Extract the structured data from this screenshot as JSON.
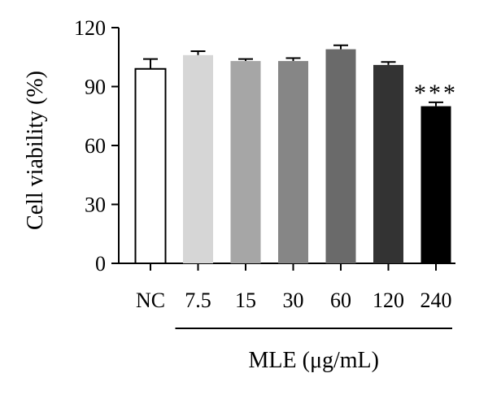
{
  "chart_data": {
    "type": "bar",
    "title": "",
    "xlabel": "",
    "ylabel": "Cell viability (%)",
    "ylim": [
      0,
      120
    ],
    "yticks": [
      0,
      30,
      60,
      90,
      120
    ],
    "grid": false,
    "categories": [
      "NC",
      "7.5",
      "15",
      "30",
      "60",
      "120",
      "240"
    ],
    "values": [
      99,
      106,
      103,
      103,
      109,
      101,
      80
    ],
    "errors": [
      5,
      2,
      1,
      1.5,
      2,
      1.5,
      2
    ],
    "bar_colors": [
      "#ffffff",
      "#d6d6d6",
      "#a6a6a6",
      "#868686",
      "#6a6a6a",
      "#333333",
      "#000000"
    ],
    "group_label": "MLE (μg/mL)",
    "group_categories": [
      "7.5",
      "15",
      "30",
      "60",
      "120",
      "240"
    ],
    "annotations": [
      {
        "category": "240",
        "text": "***"
      }
    ]
  }
}
